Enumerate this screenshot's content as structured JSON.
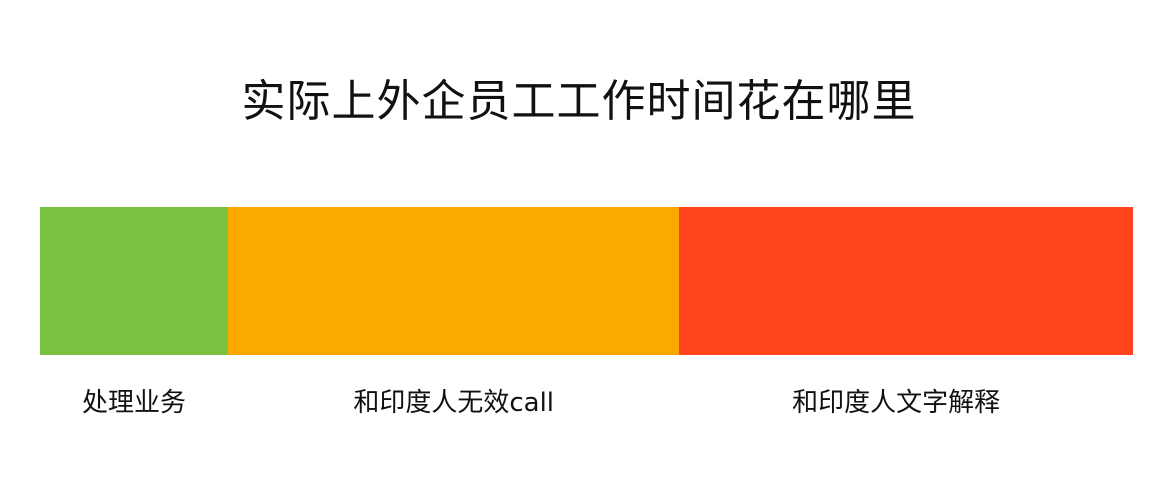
{
  "title": "实际上外企员工工作时间花在哪里",
  "chart_data": {
    "type": "bar",
    "orientation": "horizontal-stacked",
    "title": "实际上外企员工工作时间花在哪里",
    "categories": [
      "处理业务",
      "和印度人无效call",
      "和印度人文字解释"
    ],
    "values": [
      17.2,
      41.3,
      41.5
    ],
    "colors": [
      "#7AC142",
      "#FBA901",
      "#FF441D"
    ],
    "xlabel": "",
    "ylabel": "",
    "xlim": [
      0,
      100
    ],
    "grid": false,
    "legend": "none"
  }
}
